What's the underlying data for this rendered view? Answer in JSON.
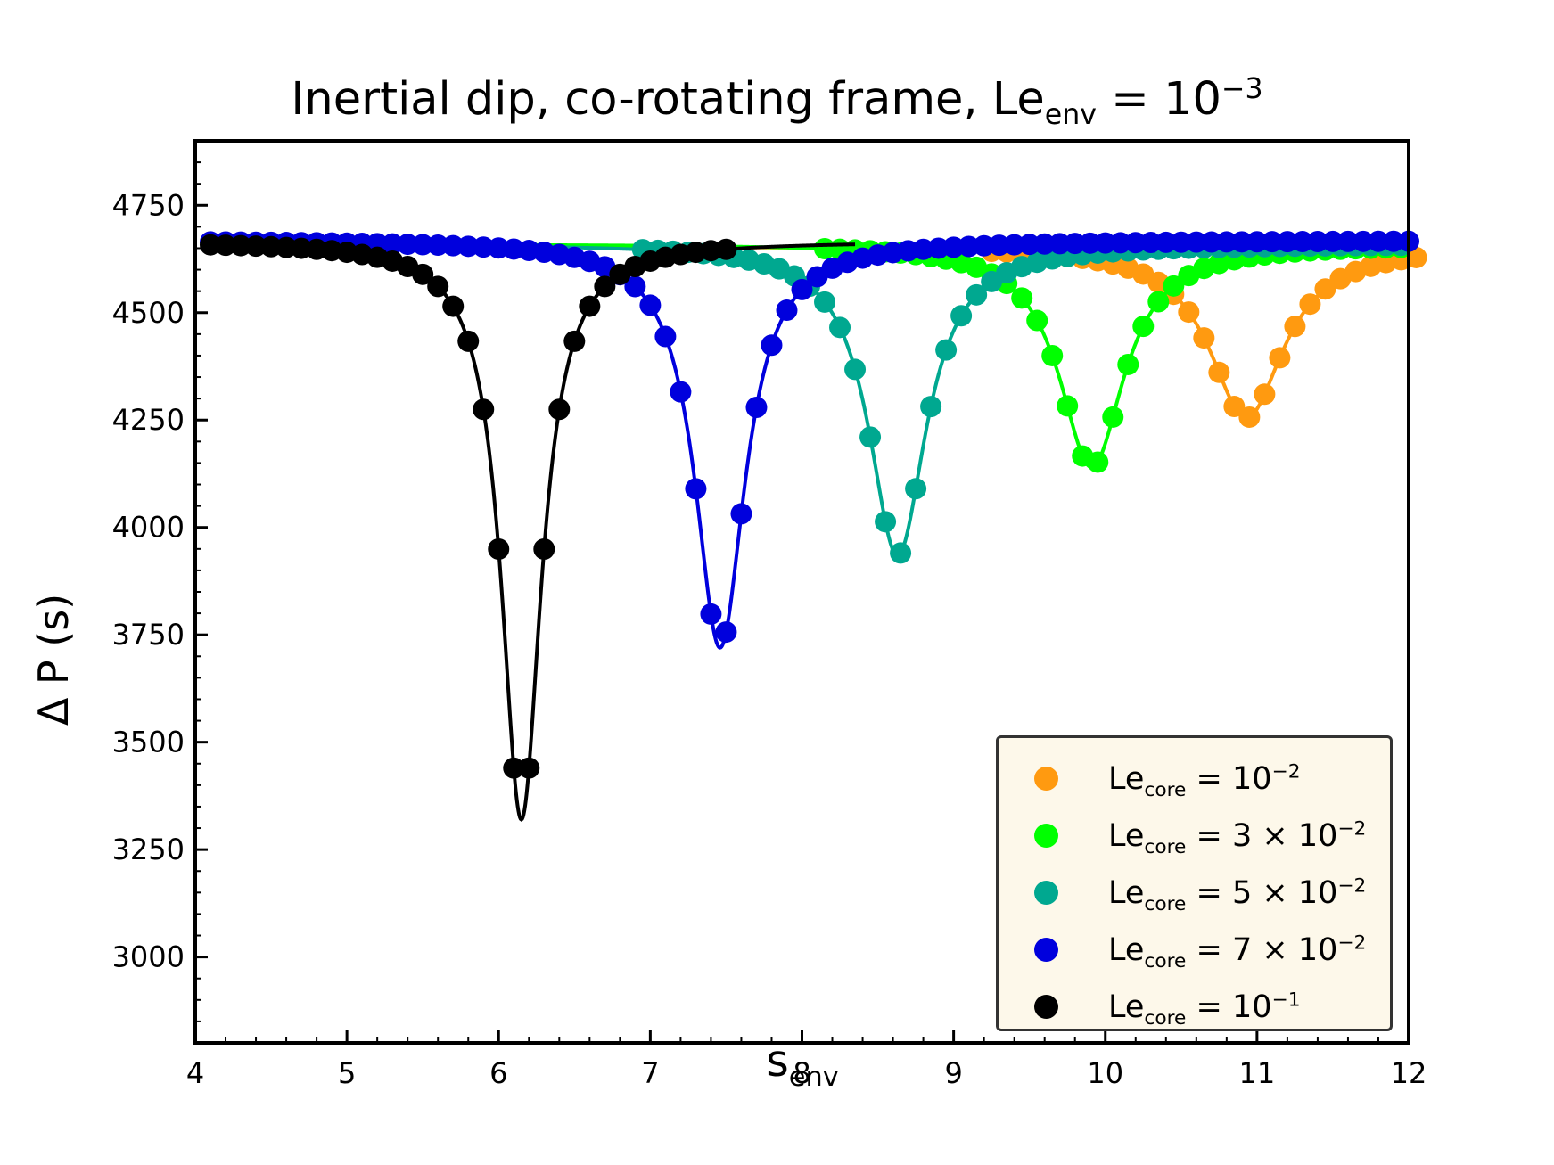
{
  "chart_data": {
    "type": "line",
    "title": "Inertial dip, co-rotating frame, Le",
    "title_sub": "env",
    "title_eq": " = 10",
    "title_exp": "−3",
    "xlabel": "s",
    "xlabel_sub": "env",
    "ylabel": "Δ P (s)",
    "xlim": [
      4,
      12
    ],
    "ylim": [
      2800,
      4900
    ],
    "xticks": [
      4,
      5,
      6,
      7,
      8,
      9,
      10,
      11,
      12
    ],
    "yticks": [
      3000,
      3250,
      3500,
      3750,
      4000,
      4250,
      4500,
      4750
    ],
    "legend_position": "lower-right",
    "series": [
      {
        "name": "Le_core = 10^-2",
        "label_prefix": "Le",
        "label_sub": "core",
        "label_eq": " = 10",
        "label_exp": "−2",
        "color": "#ff9a10",
        "baseline": 4655,
        "dip_center": 10.93,
        "dip_min": 4255,
        "dip_width": 0.3,
        "marker_start": 9.25,
        "marker_end": 12.0,
        "marker_step": 0.1
      },
      {
        "name": "Le_core = 3 x 10^-2",
        "label_prefix": "Le",
        "label_sub": "core",
        "label_eq": " = 3 × 10",
        "label_exp": "−2",
        "color": "#00ff00",
        "baseline": 4660,
        "dip_center": 9.91,
        "dip_min": 4140,
        "dip_width": 0.26,
        "marker_start": 8.15,
        "marker_end": 12.0,
        "marker_step": 0.1
      },
      {
        "name": "Le_core = 5 x 10^-2",
        "label_prefix": "Le",
        "label_sub": "core",
        "label_eq": " = 5 × 10",
        "label_exp": "−2",
        "color": "#00a890",
        "baseline": 4660,
        "dip_center": 8.63,
        "dip_min": 3935,
        "dip_width": 0.23,
        "marker_start": 6.95,
        "marker_end": 12.0,
        "marker_step": 0.1
      },
      {
        "name": "Le_core = 7 x 10^-2",
        "label_prefix": "Le",
        "label_sub": "core",
        "label_eq": " = 7 × 10",
        "label_exp": "−2",
        "color": "#0000dd",
        "baseline": 4668,
        "dip_center": 7.46,
        "dip_min": 3720,
        "dip_width": 0.2,
        "marker_start": 4.1,
        "marker_end": 12.0,
        "marker_step": 0.1
      },
      {
        "name": "Le_core = 10^-1",
        "label_prefix": "Le",
        "label_sub": "core",
        "label_eq": " = 10",
        "label_exp": "−1",
        "color": "#000000",
        "baseline": 4666,
        "dip_center": 6.15,
        "dip_min": 3320,
        "dip_width": 0.16,
        "marker_start": 4.1,
        "marker_end": 7.45,
        "marker_step": 0.1
      }
    ]
  }
}
